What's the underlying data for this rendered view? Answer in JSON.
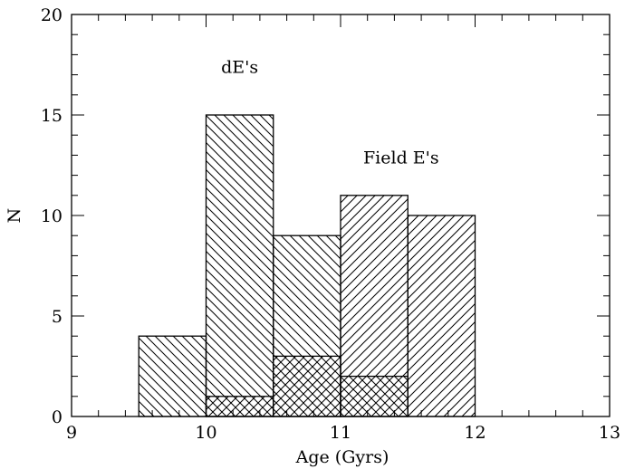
{
  "chart_data": {
    "type": "bar",
    "xlabel": "Age (Gyrs)",
    "ylabel": "N",
    "xlim": [
      9,
      13
    ],
    "ylim": [
      0,
      20
    ],
    "xticks": [
      9,
      10,
      11,
      12,
      13
    ],
    "yticks": [
      0,
      5,
      10,
      15,
      20
    ],
    "bin_width": 0.5,
    "grid": false,
    "series": [
      {
        "name": "dE's",
        "hatch": "backslash",
        "bin_starts": [
          9.5,
          10.0,
          10.5
        ],
        "values": [
          4,
          15,
          9
        ]
      },
      {
        "name": "Field E's",
        "hatch": "slash",
        "bin_starts": [
          10.0,
          10.5,
          11.0,
          11.5
        ],
        "values": [
          1,
          3,
          11,
          10
        ]
      },
      {
        "name": "",
        "hatch": "backslash",
        "bin_starts": [
          11.0
        ],
        "values": [
          2
        ]
      }
    ],
    "annotations": [
      {
        "text": "dE's",
        "x": 10.25,
        "y": 17.1
      },
      {
        "text": "Field E's",
        "x": 11.45,
        "y": 12.6
      }
    ]
  }
}
